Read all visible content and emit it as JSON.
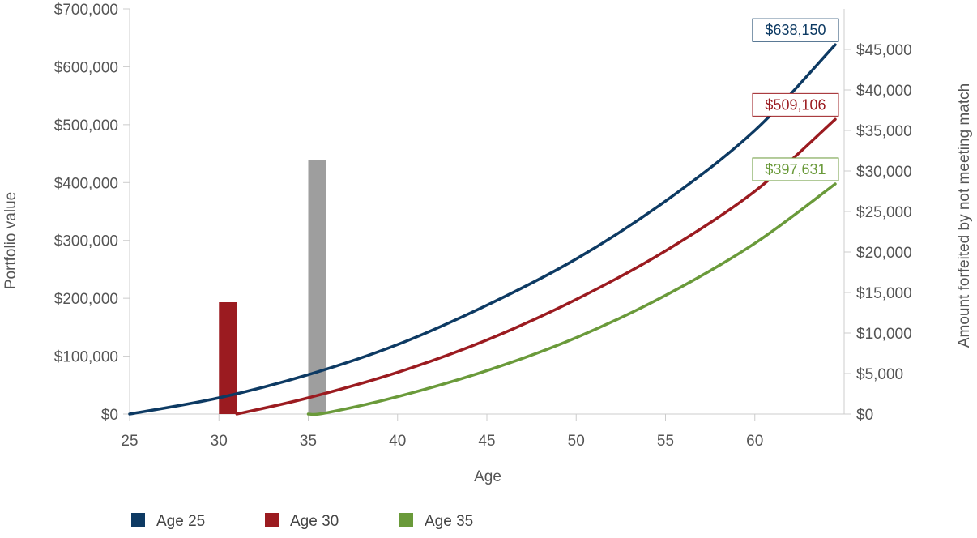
{
  "chart_data": {
    "type": "line",
    "title": "",
    "xlabel": "Age",
    "ylabel": "Portfolio value",
    "ylabel_right": "Amount forfeited by not meeting match",
    "xlim": [
      25,
      65
    ],
    "x_ticks": [
      "25",
      "30",
      "35",
      "40",
      "45",
      "50",
      "55",
      "60"
    ],
    "ylim": [
      0,
      700000
    ],
    "y_ticks": [
      "$0",
      "$100,000",
      "$200,000",
      "$300,000",
      "$400,000",
      "$500,000",
      "$600,000",
      "$700,000"
    ],
    "ylim_right": [
      0,
      50000
    ],
    "y_ticks_right": [
      "$0",
      "$5,000",
      "$10,000",
      "$15,000",
      "$20,000",
      "$25,000",
      "$30,000",
      "$35,000",
      "$40,000",
      "$45,000"
    ],
    "grid": false,
    "legend_position": "bottom-left",
    "series": [
      {
        "name": "Age 25",
        "color": "#0d3a63",
        "start_age": 25,
        "x": [
          25,
          30,
          35,
          40,
          45,
          50,
          55,
          60,
          64.5
        ],
        "y": [
          0,
          28000,
          68000,
          120000,
          188000,
          268000,
          368000,
          490000,
          638150
        ],
        "end_label": "$638,150"
      },
      {
        "name": "Age 30",
        "color": "#9b1b20",
        "start_age": 30,
        "x": [
          31,
          35,
          40,
          45,
          50,
          55,
          60,
          64.5
        ],
        "y": [
          0,
          28000,
          72000,
          128000,
          198000,
          282000,
          385000,
          509106
        ],
        "end_label": "$509,106"
      },
      {
        "name": "Age 35",
        "color": "#6a9a3a",
        "start_age": 35,
        "x": [
          35,
          36,
          40,
          45,
          50,
          55,
          60,
          64.5
        ],
        "y": [
          0,
          2000,
          30000,
          75000,
          132000,
          205000,
          295000,
          397631
        ],
        "end_label": "$397,631"
      }
    ],
    "bars": [
      {
        "x": 30.5,
        "width": 1,
        "value": 13800,
        "color": "#9b1b20",
        "axis": "right"
      },
      {
        "x": 35.5,
        "width": 1,
        "value": 31300,
        "color": "#9e9e9e",
        "axis": "right"
      }
    ]
  }
}
